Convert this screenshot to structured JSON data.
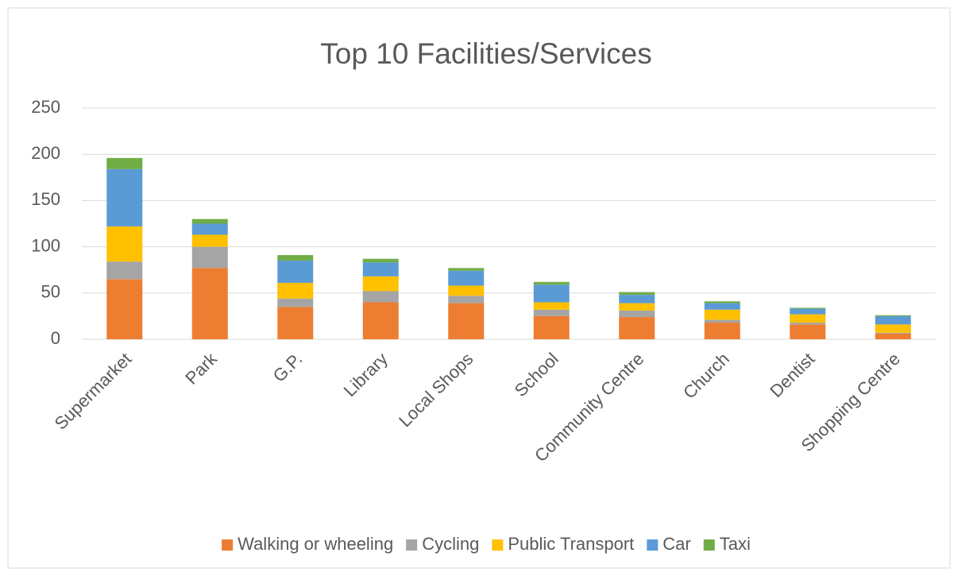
{
  "chart_data": {
    "type": "stacked_bar",
    "title": "Top 10 Facilities/Services",
    "categories": [
      "Supermarket",
      "Park",
      "G.P.",
      "Library",
      "Local Shops",
      "School",
      "Community Centre",
      "Church",
      "Dentist",
      "Shopping Centre"
    ],
    "series": [
      {
        "name": "Walking or wheeling",
        "color": "#ed7d31",
        "values": [
          65,
          77,
          35,
          40,
          39,
          25,
          24,
          18,
          16,
          6
        ]
      },
      {
        "name": "Cycling",
        "color": "#a5a5a5",
        "values": [
          19,
          23,
          9,
          12,
          8,
          7,
          7,
          3,
          2,
          1
        ]
      },
      {
        "name": "Public Transport",
        "color": "#ffc000",
        "values": [
          38,
          13,
          17,
          16,
          11,
          8,
          8,
          11,
          9,
          9
        ]
      },
      {
        "name": "Car",
        "color": "#5b9bd5",
        "values": [
          62,
          12,
          24,
          15,
          16,
          19,
          9,
          7,
          6,
          9
        ]
      },
      {
        "name": "Taxi",
        "color": "#70ad47",
        "values": [
          12,
          5,
          6,
          4,
          3,
          3,
          3,
          2,
          1,
          1
        ]
      }
    ],
    "ylim": [
      0,
      250
    ],
    "yticks": [
      0,
      50,
      100,
      150,
      200,
      250
    ],
    "grid": true,
    "legend": "bottom"
  }
}
